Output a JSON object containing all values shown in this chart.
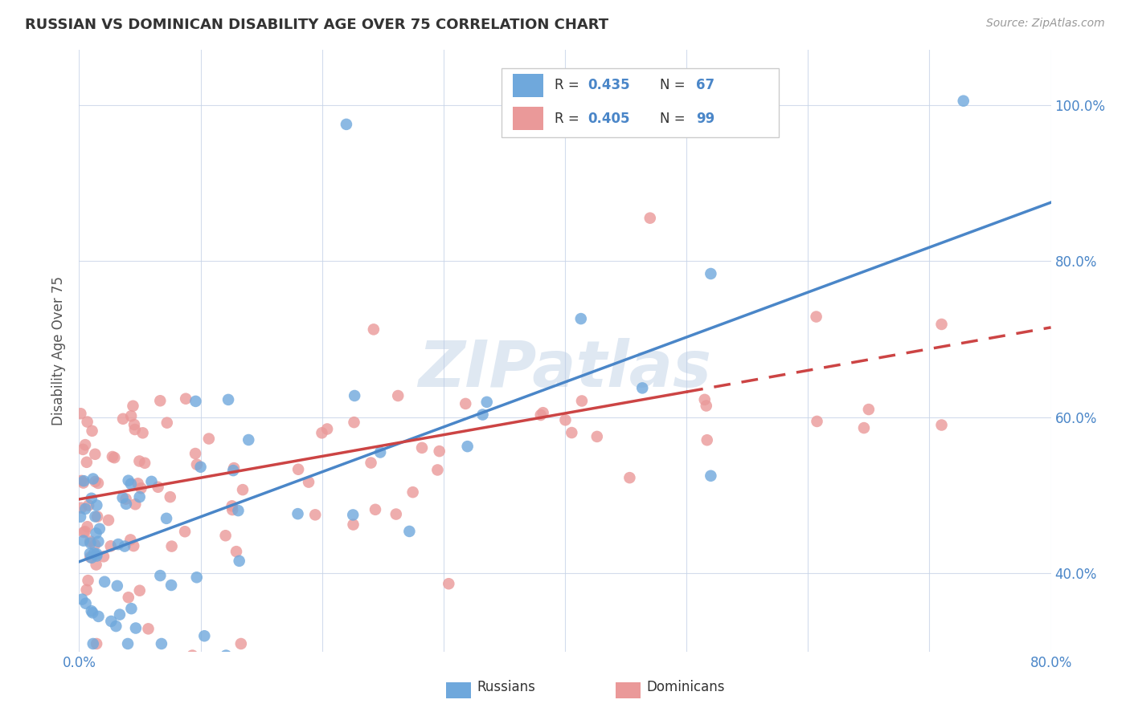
{
  "title": "RUSSIAN VS DOMINICAN DISABILITY AGE OVER 75 CORRELATION CHART",
  "source": "Source: ZipAtlas.com",
  "ylabel": "Disability Age Over 75",
  "xlim": [
    0.0,
    0.8
  ],
  "ylim": [
    0.3,
    1.07
  ],
  "xtick_positions": [
    0.0,
    0.1,
    0.2,
    0.3,
    0.4,
    0.5,
    0.6,
    0.7,
    0.8
  ],
  "xticklabels": [
    "0.0%",
    "",
    "",
    "",
    "",
    "",
    "",
    "",
    "80.0%"
  ],
  "ytick_positions": [
    0.4,
    0.6,
    0.8,
    1.0
  ],
  "ytick_labels": [
    "40.0%",
    "60.0%",
    "80.0%",
    "100.0%"
  ],
  "russian_R": 0.435,
  "russian_N": 67,
  "dominican_R": 0.405,
  "dominican_N": 99,
  "russian_color": "#6fa8dc",
  "dominican_color": "#ea9999",
  "russian_line_color": "#4a86c8",
  "dominican_line_color": "#cc4444",
  "watermark": "ZIPatlas",
  "rus_line_x0": 0.0,
  "rus_line_y0": 0.415,
  "rus_line_x1": 0.8,
  "rus_line_y1": 0.875,
  "dom_line_x0": 0.0,
  "dom_line_y0": 0.495,
  "dom_line_x1": 0.8,
  "dom_line_y1": 0.715,
  "dom_dash_split": 0.5
}
